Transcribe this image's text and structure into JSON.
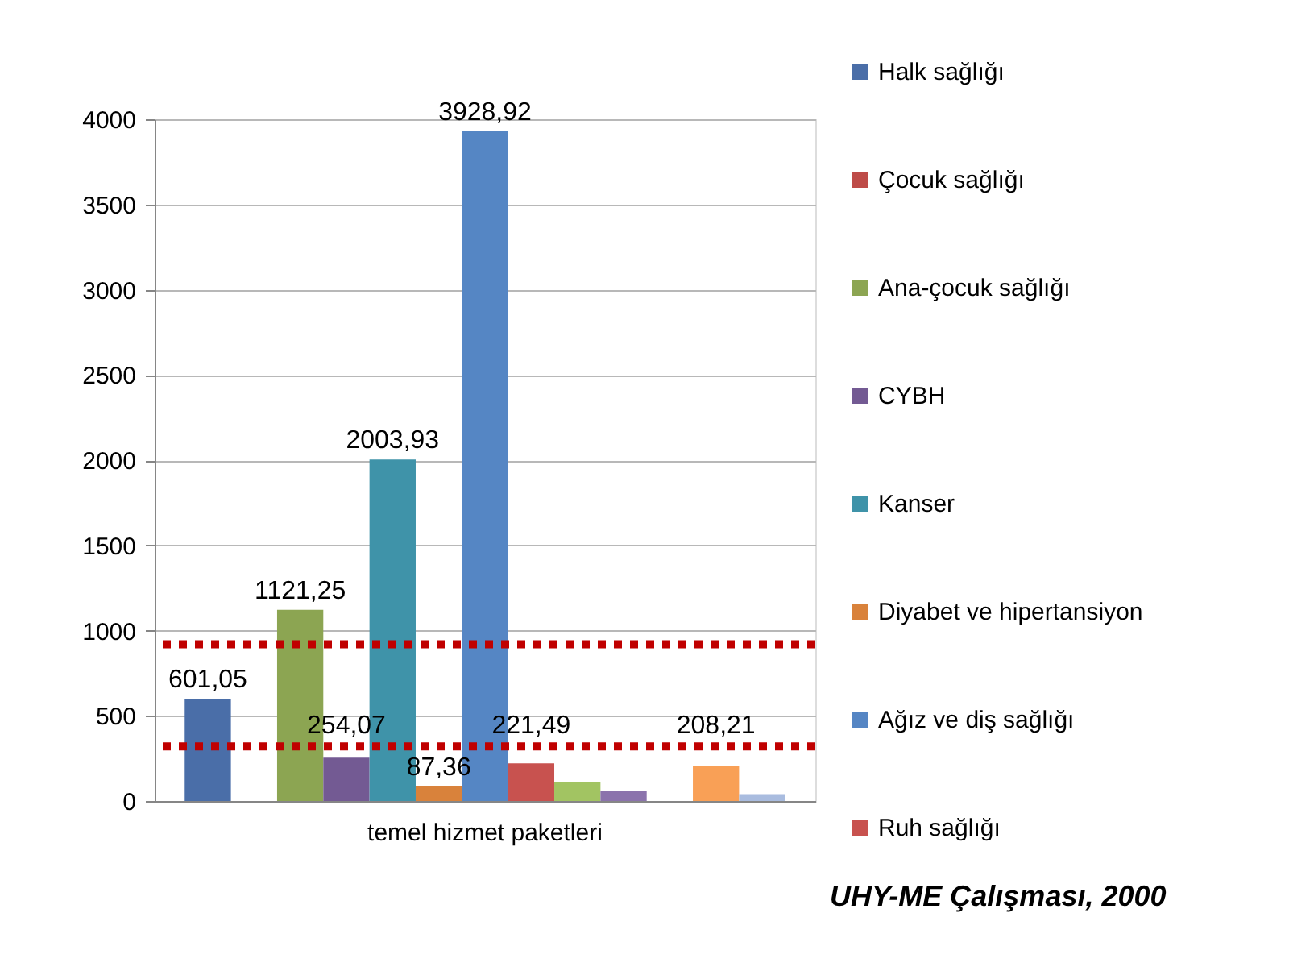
{
  "chart_data": {
    "type": "bar",
    "categories": [
      "temel hizmet paketleri"
    ],
    "series": [
      {
        "name": "Halk sağlığı",
        "color": "#4a6ea8",
        "values": [
          601.05
        ],
        "value_labels": [
          "601,05"
        ]
      },
      {
        "name": "Çocuk sağlığı",
        "color": "#be4b48",
        "values": [
          null
        ]
      },
      {
        "name": "Ana-çocuk sağlığı",
        "color": "#8ca552",
        "values": [
          1121.25
        ],
        "value_labels": [
          "1121,25"
        ]
      },
      {
        "name": "CYBH",
        "color": "#735a93",
        "values": [
          254.07
        ],
        "value_labels": [
          "254,07"
        ]
      },
      {
        "name": "Kanser",
        "color": "#3f93a9",
        "values": [
          2003.93
        ],
        "value_labels": [
          "2003,93"
        ]
      },
      {
        "name": "Diyabet ve hipertansiyon",
        "color": "#d9823b",
        "values": [
          87.36
        ],
        "value_labels": [
          "87,36"
        ]
      },
      {
        "name": "Ağız ve diş sağlığı",
        "color": "#5586c4",
        "values": [
          3928.92
        ],
        "value_labels": [
          "3928,92"
        ]
      },
      {
        "name": "Ruh sağlığı",
        "color": "#c8524f",
        "values": [
          221.49
        ],
        "value_labels": [
          "221,49"
        ]
      },
      {
        "color": "#a2c462",
        "values": [
          110
        ]
      },
      {
        "color": "#8b73ac",
        "values": [
          60
        ]
      },
      {
        "values": [
          null
        ]
      },
      {
        "color": "#f9a056",
        "values": [
          208.21
        ],
        "value_labels": [
          "208,21"
        ]
      },
      {
        "color": "#a9bcdf",
        "values": [
          40
        ]
      }
    ],
    "ylim": [
      0,
      4000
    ],
    "yticks": [
      0,
      500,
      1000,
      1500,
      2000,
      2500,
      3000,
      3500,
      4000
    ],
    "grid": "y",
    "legend": "right",
    "ref_lines": [
      {
        "axis": "y",
        "value": 920,
        "color": "#c00000",
        "line_style": "dotted"
      },
      {
        "axis": "y",
        "value": 320,
        "color": "#c00000",
        "line_style": "dotted"
      }
    ],
    "annotations": [
      "UHY-ME Çalışması, 2000"
    ]
  }
}
